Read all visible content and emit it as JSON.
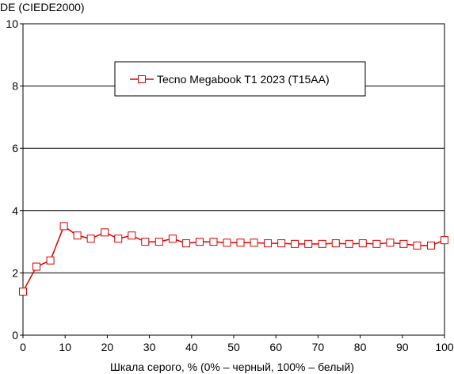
{
  "chart_data": {
    "type": "line",
    "title": "",
    "ylabel": "DE (CIEDE2000)",
    "xlabel": "Шкала серого, % (0% – черный, 100% – белый)",
    "xlim": [
      0,
      100
    ],
    "ylim": [
      0,
      10
    ],
    "xticks": [
      0,
      10,
      20,
      30,
      40,
      50,
      60,
      70,
      80,
      90,
      100
    ],
    "yticks": [
      0,
      2,
      4,
      6,
      8,
      10
    ],
    "grid": "horizontal",
    "legend_position": "top-center",
    "series": [
      {
        "name": "Tecno Megabook T1 2023 (T15AA)",
        "color": "#e00000",
        "marker": "square-open",
        "x": [
          0,
          3.2,
          6.5,
          9.7,
          12.9,
          16.1,
          19.4,
          22.6,
          25.8,
          29.0,
          32.3,
          35.5,
          38.7,
          41.9,
          45.2,
          48.4,
          51.6,
          54.8,
          58.1,
          61.3,
          64.5,
          67.7,
          71.0,
          74.2,
          77.4,
          80.6,
          83.9,
          87.1,
          90.3,
          93.5,
          96.8,
          100
        ],
        "y": [
          1.4,
          2.2,
          2.4,
          3.5,
          3.2,
          3.1,
          3.3,
          3.1,
          3.2,
          3.0,
          3.0,
          3.1,
          2.95,
          3.0,
          3.0,
          2.97,
          2.97,
          2.97,
          2.95,
          2.95,
          2.93,
          2.93,
          2.93,
          2.95,
          2.93,
          2.95,
          2.93,
          2.97,
          2.93,
          2.88,
          2.88,
          3.05
        ]
      }
    ]
  }
}
